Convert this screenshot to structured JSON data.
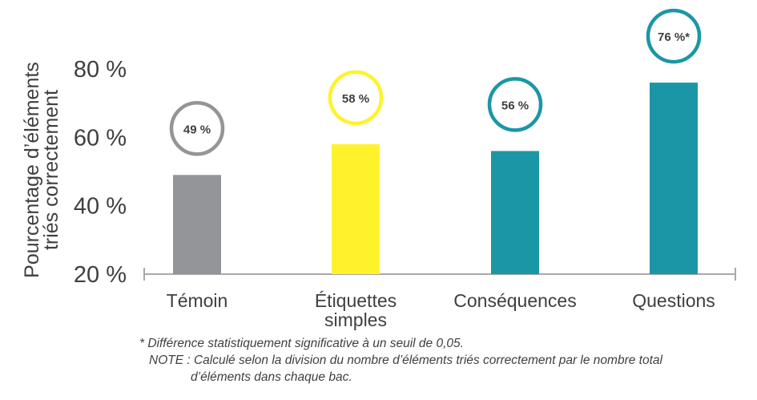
{
  "chart_data": {
    "type": "bar",
    "ylabel_lines": [
      "Pourcentage d’éléments",
      "triés correctement"
    ],
    "ylim": [
      20,
      80
    ],
    "yticks": [
      "20 %",
      "40 %",
      "60 %",
      "80 %"
    ],
    "ytick_values": [
      20,
      40,
      60,
      80
    ],
    "categories": [
      [
        "Témoin"
      ],
      [
        "Étiquettes",
        "simples"
      ],
      [
        "Conséquences"
      ],
      [
        "Questions"
      ]
    ],
    "values": [
      49,
      58,
      56,
      76
    ],
    "data_labels": [
      "49 %",
      "58 %",
      "56 %",
      "76 %*"
    ],
    "colors": [
      "#939598",
      "#fff22d",
      "#1b96a6",
      "#1b96a6"
    ],
    "ring_colors": [
      "#939598",
      "#fff22d",
      "#1b96a6",
      "#1b96a6"
    ],
    "grid": false
  },
  "footnotes": {
    "note1": "* Différence statistiquement significative à un seuil de 0,05.",
    "note2": "NOTE : Calculé selon la division du nombre d’éléments triés correctement par le nombre total",
    "note3": "d’éléments dans chaque bac."
  }
}
